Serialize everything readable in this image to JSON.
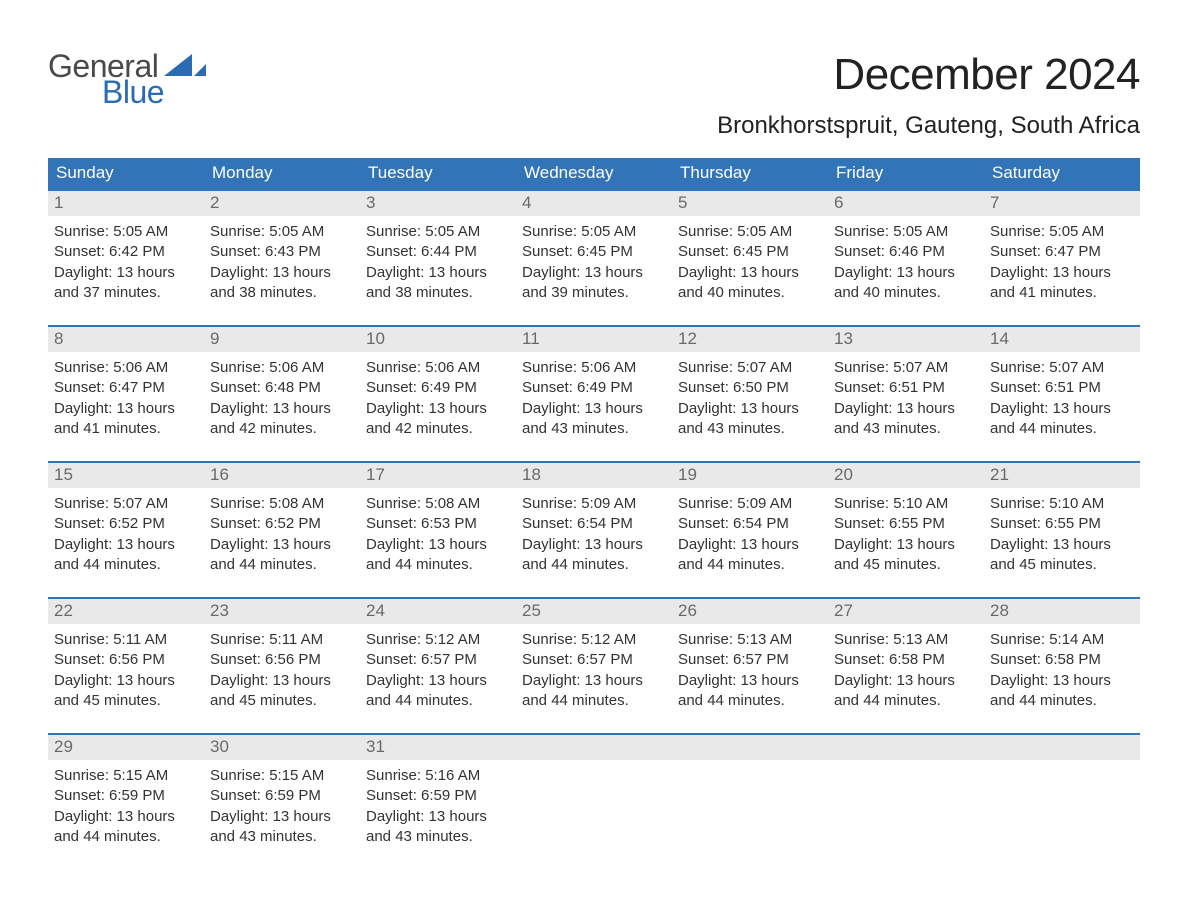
{
  "logo": {
    "text_general": "General",
    "text_blue": "Blue",
    "general_color": "#4a4a4a",
    "blue_color": "#2a6cb3",
    "sail_color": "#2a6cb3"
  },
  "title": {
    "month_year": "December 2024",
    "location": "Bronkhorstspruit, Gauteng, South Africa",
    "title_fontsize": 44,
    "location_fontsize": 24,
    "text_color": "#222222"
  },
  "calendar": {
    "header_bg": "#3174b8",
    "header_text_color": "#ffffff",
    "daynum_bg": "#e9e9e9",
    "daynum_color": "#6a6a6a",
    "row_border_color": "#3174b8",
    "body_text_color": "#333333",
    "weekdays": [
      "Sunday",
      "Monday",
      "Tuesday",
      "Wednesday",
      "Thursday",
      "Friday",
      "Saturday"
    ],
    "weeks": [
      [
        {
          "day": "1",
          "sunrise": "Sunrise: 5:05 AM",
          "sunset": "Sunset: 6:42 PM",
          "dl1": "Daylight: 13 hours",
          "dl2": "and 37 minutes."
        },
        {
          "day": "2",
          "sunrise": "Sunrise: 5:05 AM",
          "sunset": "Sunset: 6:43 PM",
          "dl1": "Daylight: 13 hours",
          "dl2": "and 38 minutes."
        },
        {
          "day": "3",
          "sunrise": "Sunrise: 5:05 AM",
          "sunset": "Sunset: 6:44 PM",
          "dl1": "Daylight: 13 hours",
          "dl2": "and 38 minutes."
        },
        {
          "day": "4",
          "sunrise": "Sunrise: 5:05 AM",
          "sunset": "Sunset: 6:45 PM",
          "dl1": "Daylight: 13 hours",
          "dl2": "and 39 minutes."
        },
        {
          "day": "5",
          "sunrise": "Sunrise: 5:05 AM",
          "sunset": "Sunset: 6:45 PM",
          "dl1": "Daylight: 13 hours",
          "dl2": "and 40 minutes."
        },
        {
          "day": "6",
          "sunrise": "Sunrise: 5:05 AM",
          "sunset": "Sunset: 6:46 PM",
          "dl1": "Daylight: 13 hours",
          "dl2": "and 40 minutes."
        },
        {
          "day": "7",
          "sunrise": "Sunrise: 5:05 AM",
          "sunset": "Sunset: 6:47 PM",
          "dl1": "Daylight: 13 hours",
          "dl2": "and 41 minutes."
        }
      ],
      [
        {
          "day": "8",
          "sunrise": "Sunrise: 5:06 AM",
          "sunset": "Sunset: 6:47 PM",
          "dl1": "Daylight: 13 hours",
          "dl2": "and 41 minutes."
        },
        {
          "day": "9",
          "sunrise": "Sunrise: 5:06 AM",
          "sunset": "Sunset: 6:48 PM",
          "dl1": "Daylight: 13 hours",
          "dl2": "and 42 minutes."
        },
        {
          "day": "10",
          "sunrise": "Sunrise: 5:06 AM",
          "sunset": "Sunset: 6:49 PM",
          "dl1": "Daylight: 13 hours",
          "dl2": "and 42 minutes."
        },
        {
          "day": "11",
          "sunrise": "Sunrise: 5:06 AM",
          "sunset": "Sunset: 6:49 PM",
          "dl1": "Daylight: 13 hours",
          "dl2": "and 43 minutes."
        },
        {
          "day": "12",
          "sunrise": "Sunrise: 5:07 AM",
          "sunset": "Sunset: 6:50 PM",
          "dl1": "Daylight: 13 hours",
          "dl2": "and 43 minutes."
        },
        {
          "day": "13",
          "sunrise": "Sunrise: 5:07 AM",
          "sunset": "Sunset: 6:51 PM",
          "dl1": "Daylight: 13 hours",
          "dl2": "and 43 minutes."
        },
        {
          "day": "14",
          "sunrise": "Sunrise: 5:07 AM",
          "sunset": "Sunset: 6:51 PM",
          "dl1": "Daylight: 13 hours",
          "dl2": "and 44 minutes."
        }
      ],
      [
        {
          "day": "15",
          "sunrise": "Sunrise: 5:07 AM",
          "sunset": "Sunset: 6:52 PM",
          "dl1": "Daylight: 13 hours",
          "dl2": "and 44 minutes."
        },
        {
          "day": "16",
          "sunrise": "Sunrise: 5:08 AM",
          "sunset": "Sunset: 6:52 PM",
          "dl1": "Daylight: 13 hours",
          "dl2": "and 44 minutes."
        },
        {
          "day": "17",
          "sunrise": "Sunrise: 5:08 AM",
          "sunset": "Sunset: 6:53 PM",
          "dl1": "Daylight: 13 hours",
          "dl2": "and 44 minutes."
        },
        {
          "day": "18",
          "sunrise": "Sunrise: 5:09 AM",
          "sunset": "Sunset: 6:54 PM",
          "dl1": "Daylight: 13 hours",
          "dl2": "and 44 minutes."
        },
        {
          "day": "19",
          "sunrise": "Sunrise: 5:09 AM",
          "sunset": "Sunset: 6:54 PM",
          "dl1": "Daylight: 13 hours",
          "dl2": "and 44 minutes."
        },
        {
          "day": "20",
          "sunrise": "Sunrise: 5:10 AM",
          "sunset": "Sunset: 6:55 PM",
          "dl1": "Daylight: 13 hours",
          "dl2": "and 45 minutes."
        },
        {
          "day": "21",
          "sunrise": "Sunrise: 5:10 AM",
          "sunset": "Sunset: 6:55 PM",
          "dl1": "Daylight: 13 hours",
          "dl2": "and 45 minutes."
        }
      ],
      [
        {
          "day": "22",
          "sunrise": "Sunrise: 5:11 AM",
          "sunset": "Sunset: 6:56 PM",
          "dl1": "Daylight: 13 hours",
          "dl2": "and 45 minutes."
        },
        {
          "day": "23",
          "sunrise": "Sunrise: 5:11 AM",
          "sunset": "Sunset: 6:56 PM",
          "dl1": "Daylight: 13 hours",
          "dl2": "and 45 minutes."
        },
        {
          "day": "24",
          "sunrise": "Sunrise: 5:12 AM",
          "sunset": "Sunset: 6:57 PM",
          "dl1": "Daylight: 13 hours",
          "dl2": "and 44 minutes."
        },
        {
          "day": "25",
          "sunrise": "Sunrise: 5:12 AM",
          "sunset": "Sunset: 6:57 PM",
          "dl1": "Daylight: 13 hours",
          "dl2": "and 44 minutes."
        },
        {
          "day": "26",
          "sunrise": "Sunrise: 5:13 AM",
          "sunset": "Sunset: 6:57 PM",
          "dl1": "Daylight: 13 hours",
          "dl2": "and 44 minutes."
        },
        {
          "day": "27",
          "sunrise": "Sunrise: 5:13 AM",
          "sunset": "Sunset: 6:58 PM",
          "dl1": "Daylight: 13 hours",
          "dl2": "and 44 minutes."
        },
        {
          "day": "28",
          "sunrise": "Sunrise: 5:14 AM",
          "sunset": "Sunset: 6:58 PM",
          "dl1": "Daylight: 13 hours",
          "dl2": "and 44 minutes."
        }
      ],
      [
        {
          "day": "29",
          "sunrise": "Sunrise: 5:15 AM",
          "sunset": "Sunset: 6:59 PM",
          "dl1": "Daylight: 13 hours",
          "dl2": "and 44 minutes."
        },
        {
          "day": "30",
          "sunrise": "Sunrise: 5:15 AM",
          "sunset": "Sunset: 6:59 PM",
          "dl1": "Daylight: 13 hours",
          "dl2": "and 43 minutes."
        },
        {
          "day": "31",
          "sunrise": "Sunrise: 5:16 AM",
          "sunset": "Sunset: 6:59 PM",
          "dl1": "Daylight: 13 hours",
          "dl2": "and 43 minutes."
        },
        {
          "empty": true
        },
        {
          "empty": true
        },
        {
          "empty": true
        },
        {
          "empty": true
        }
      ]
    ]
  }
}
